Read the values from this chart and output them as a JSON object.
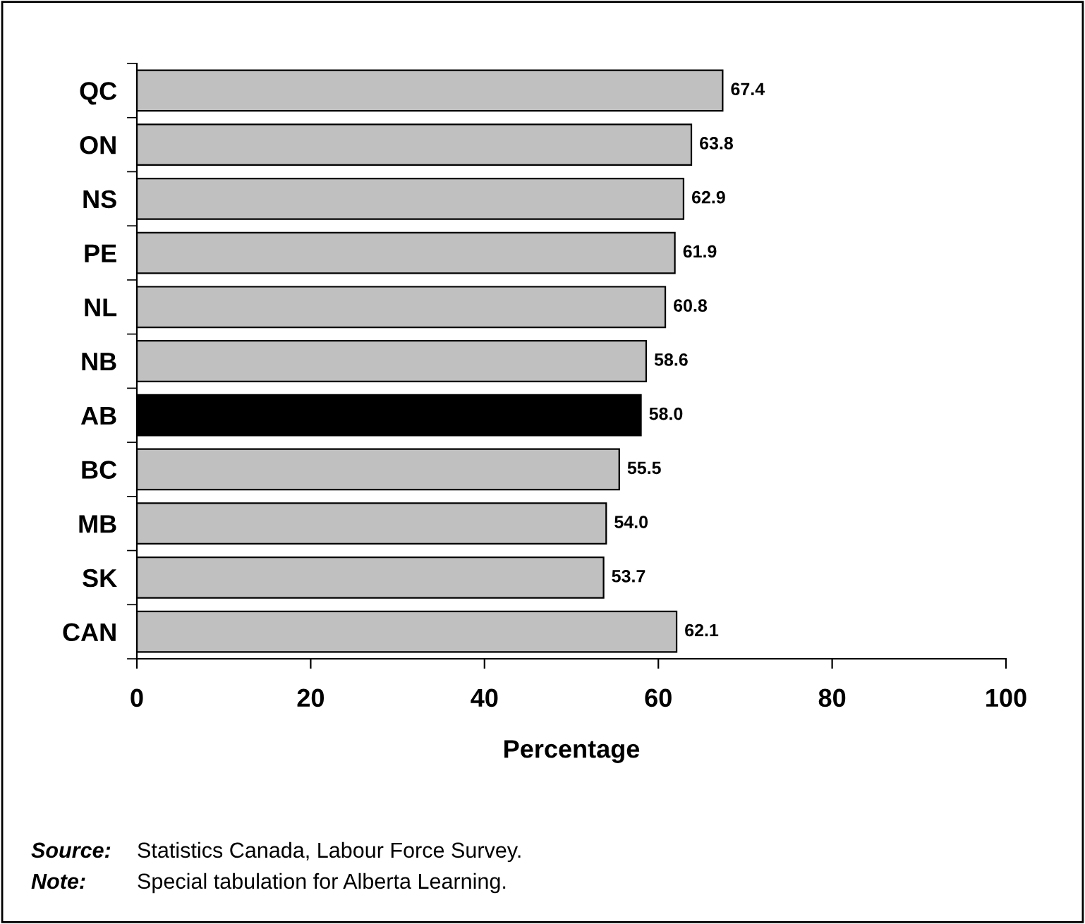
{
  "chart_data": {
    "type": "bar",
    "orientation": "horizontal",
    "xlabel": "Percentage",
    "categories": [
      "QC",
      "ON",
      "NS",
      "PE",
      "NL",
      "NB",
      "AB",
      "BC",
      "MB",
      "SK",
      "CAN"
    ],
    "values": [
      67.4,
      63.8,
      62.9,
      61.9,
      60.8,
      58.6,
      58.0,
      55.5,
      54.0,
      53.7,
      62.1
    ],
    "colors": [
      "#c0c0c0",
      "#c0c0c0",
      "#c0c0c0",
      "#c0c0c0",
      "#c0c0c0",
      "#c0c0c0",
      "#000000",
      "#c0c0c0",
      "#c0c0c0",
      "#c0c0c0",
      "#c0c0c0"
    ],
    "value_labels": [
      "67.4",
      "63.8",
      "62.9",
      "61.9",
      "60.8",
      "58.6",
      "58.0",
      "55.5",
      "54.0",
      "53.7",
      "62.1"
    ],
    "xlim": [
      0,
      100
    ],
    "xticks": [
      0,
      20,
      40,
      60,
      80,
      100
    ],
    "grid": false,
    "legend": false,
    "annotations": [
      "Source:",
      "Statistics Canada, Labour Force Survey.",
      "Note:",
      "Special tabulation for Alberta Learning."
    ]
  }
}
